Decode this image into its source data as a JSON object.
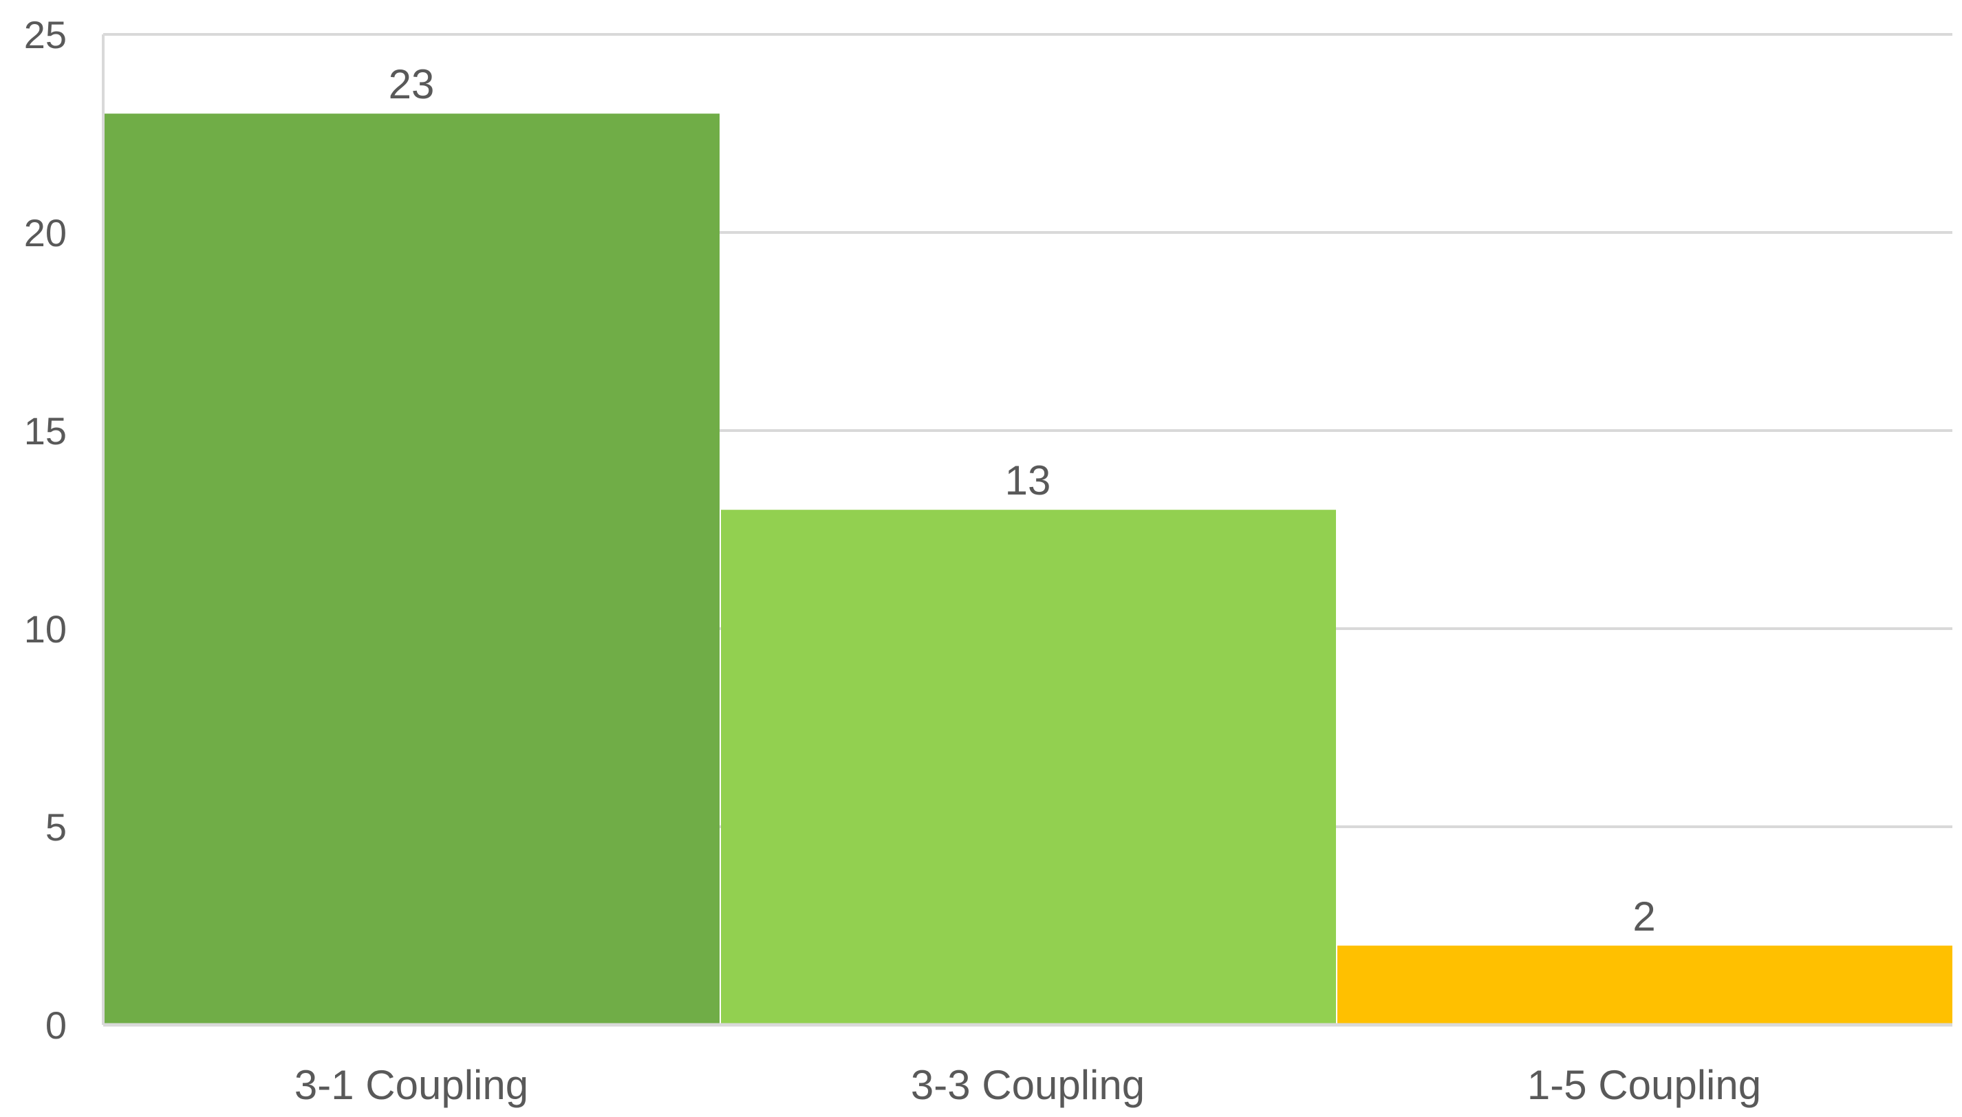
{
  "chart_data": {
    "type": "bar",
    "categories": [
      "3-1 Coupling",
      "3-3 Coupling",
      "1-5 Coupling"
    ],
    "values": [
      23,
      13,
      2
    ],
    "data_labels": [
      "23",
      "13",
      "2"
    ],
    "bar_colors": [
      "#70AD47",
      "#92D050",
      "#FFC000"
    ],
    "title": "",
    "xlabel": "",
    "ylabel": "",
    "ylim": [
      0,
      25
    ],
    "yticks": [
      0,
      5,
      10,
      15,
      20,
      25
    ],
    "ytick_labels": [
      "0",
      "5",
      "10",
      "15",
      "20",
      "25"
    ],
    "grid": true,
    "gridline_color": "#D9D9D9",
    "legend": "none"
  }
}
